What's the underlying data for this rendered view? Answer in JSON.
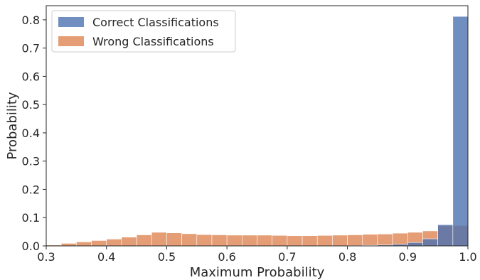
{
  "chart_data": {
    "type": "bar",
    "xlabel": "Maximum Probability",
    "ylabel": "Probability",
    "xlim": [
      0.3,
      1.0
    ],
    "ylim": [
      0,
      0.85
    ],
    "xticks": [
      "0.3",
      "0.4",
      "0.5",
      "0.6",
      "0.7",
      "0.8",
      "0.9",
      "1.0"
    ],
    "yticks": [
      "0.0",
      "0.1",
      "0.2",
      "0.3",
      "0.4",
      "0.5",
      "0.6",
      "0.7",
      "0.8"
    ],
    "grid": false,
    "legend_position": "top-left",
    "bin_edges": [
      0.3,
      0.325,
      0.35,
      0.375,
      0.4,
      0.425,
      0.45,
      0.475,
      0.5,
      0.525,
      0.55,
      0.575,
      0.6,
      0.625,
      0.65,
      0.675,
      0.7,
      0.725,
      0.75,
      0.775,
      0.8,
      0.825,
      0.85,
      0.875,
      0.9,
      0.925,
      0.95,
      0.975,
      1.0
    ],
    "series": [
      {
        "name": "Wrong Classifications",
        "color": "#dd8452",
        "values": [
          0.003,
          0.009,
          0.014,
          0.019,
          0.024,
          0.031,
          0.039,
          0.048,
          0.046,
          0.043,
          0.04,
          0.039,
          0.038,
          0.038,
          0.038,
          0.037,
          0.036,
          0.036,
          0.037,
          0.038,
          0.039,
          0.041,
          0.042,
          0.045,
          0.048,
          0.053,
          0.072,
          0.072
        ]
      },
      {
        "name": "Correct Classifications",
        "color": "#4c72b0",
        "values": [
          0.0,
          0.0,
          0.0,
          0.0,
          0.0,
          0.0,
          0.0,
          0.0,
          0.0,
          0.0,
          0.0,
          0.0,
          0.0,
          0.0,
          0.0,
          0.0,
          0.0,
          0.0,
          0.0,
          0.0,
          0.001,
          0.002,
          0.003,
          0.006,
          0.012,
          0.025,
          0.075,
          0.812
        ]
      }
    ],
    "legend": [
      {
        "name": "Correct Classifications",
        "color": "#4c72b0"
      },
      {
        "name": "Wrong Classifications",
        "color": "#dd8452"
      }
    ]
  }
}
